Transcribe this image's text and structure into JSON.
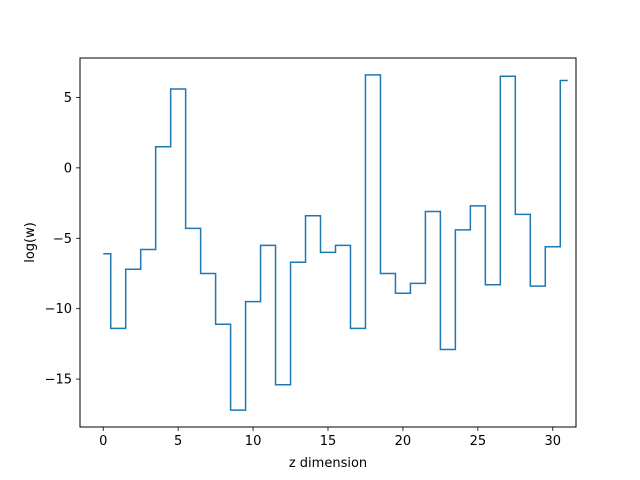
{
  "chart_data": {
    "type": "line",
    "drawstyle": "steps-mid",
    "xlabel": "z dimension",
    "ylabel": "log(w)",
    "xlim": [
      -1.55,
      31.55
    ],
    "ylim": [
      -18.4,
      7.8
    ],
    "xticks": [
      0,
      5,
      10,
      15,
      20,
      25,
      30
    ],
    "yticks": [
      -15,
      -10,
      -5,
      0,
      5
    ],
    "grid": false,
    "line_color": "#1f77b4",
    "series": [
      {
        "x": [
          0,
          1,
          2,
          3,
          4,
          5,
          6,
          7,
          8,
          9,
          10,
          11,
          12,
          13,
          14,
          15,
          16,
          17,
          18,
          19,
          20,
          21,
          22,
          23,
          24,
          25,
          26,
          27,
          28,
          29,
          30,
          31
        ],
        "values": [
          -6.1,
          -11.4,
          -7.2,
          -5.8,
          1.5,
          5.6,
          -4.3,
          -7.5,
          -11.1,
          -17.2,
          -9.5,
          -5.5,
          -15.4,
          -6.7,
          -3.4,
          -6.0,
          -5.5,
          -11.4,
          6.6,
          -7.5,
          -8.9,
          -8.2,
          -3.1,
          -12.9,
          -4.4,
          -2.7,
          -8.3,
          6.5,
          -3.3,
          -8.4,
          -5.6,
          6.2
        ]
      }
    ]
  }
}
